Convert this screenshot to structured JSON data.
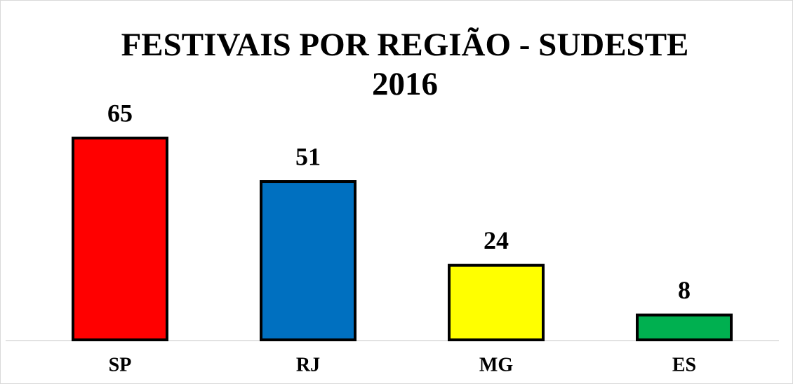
{
  "chart_data": {
    "type": "bar",
    "title": "FESTIVAIS POR REGIÃO - SUDESTE 2016",
    "categories": [
      "SP",
      "RJ",
      "MG",
      "ES"
    ],
    "values": [
      65,
      51,
      24,
      8
    ],
    "colors": [
      "#ff0000",
      "#0070c0",
      "#ffff00",
      "#00b050"
    ]
  }
}
